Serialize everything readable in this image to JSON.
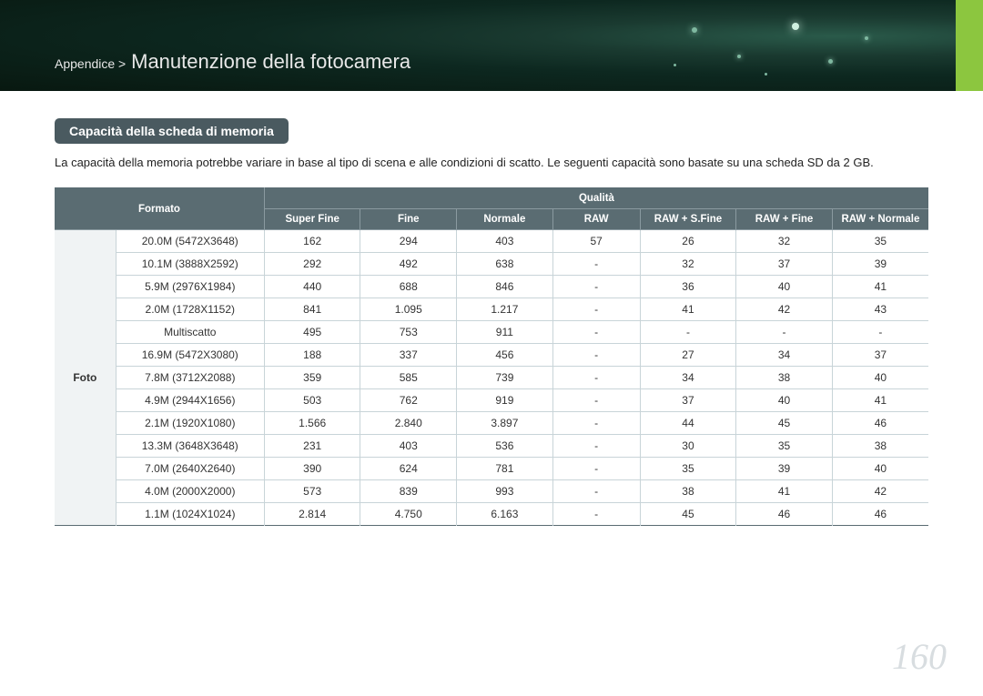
{
  "page": {
    "breadcrumb_prefix": "Appendice >",
    "breadcrumb_title": "Manutenzione della fotocamera",
    "page_number": "160"
  },
  "section": {
    "pill": "Capacità della scheda di memoria",
    "desc": "La capacità della memoria potrebbe variare in base al tipo di scena e alle condizioni di scatto. Le seguenti capacità sono basate su una scheda SD da 2 GB."
  },
  "table": {
    "header_group_left": "Formato",
    "header_group_right": "Qualità",
    "quality_columns": [
      "Super Fine",
      "Fine",
      "Normale",
      "RAW",
      "RAW + S.Fine",
      "RAW + Fine",
      "RAW + Normale"
    ],
    "row_category": "Foto",
    "rows": [
      {
        "format": "20.0M (5472X3648)",
        "vals": [
          "162",
          "294",
          "403",
          "57",
          "26",
          "32",
          "35"
        ]
      },
      {
        "format": "10.1M (3888X2592)",
        "vals": [
          "292",
          "492",
          "638",
          "-",
          "32",
          "37",
          "39"
        ]
      },
      {
        "format": "5.9M (2976X1984)",
        "vals": [
          "440",
          "688",
          "846",
          "-",
          "36",
          "40",
          "41"
        ]
      },
      {
        "format": "2.0M (1728X1152)",
        "vals": [
          "841",
          "1.095",
          "1.217",
          "-",
          "41",
          "42",
          "43"
        ]
      },
      {
        "format": "Multiscatto",
        "vals": [
          "495",
          "753",
          "911",
          "-",
          "-",
          "-",
          "-"
        ]
      },
      {
        "format": "16.9M (5472X3080)",
        "vals": [
          "188",
          "337",
          "456",
          "-",
          "27",
          "34",
          "37"
        ]
      },
      {
        "format": "7.8M (3712X2088)",
        "vals": [
          "359",
          "585",
          "739",
          "-",
          "34",
          "38",
          "40"
        ]
      },
      {
        "format": "4.9M (2944X1656)",
        "vals": [
          "503",
          "762",
          "919",
          "-",
          "37",
          "40",
          "41"
        ]
      },
      {
        "format": "2.1M (1920X1080)",
        "vals": [
          "1.566",
          "2.840",
          "3.897",
          "-",
          "44",
          "45",
          "46"
        ]
      },
      {
        "format": "13.3M (3648X3648)",
        "vals": [
          "231",
          "403",
          "536",
          "-",
          "30",
          "35",
          "38"
        ]
      },
      {
        "format": "7.0M (2640X2640)",
        "vals": [
          "390",
          "624",
          "781",
          "-",
          "35",
          "39",
          "40"
        ]
      },
      {
        "format": "4.0M (2000X2000)",
        "vals": [
          "573",
          "839",
          "993",
          "-",
          "38",
          "41",
          "42"
        ]
      },
      {
        "format": "1.1M (1024X1024)",
        "vals": [
          "2.814",
          "4.750",
          "6.163",
          "-",
          "45",
          "46",
          "46"
        ]
      }
    ]
  },
  "style": {
    "header_bg": "#5a6c72",
    "header_border": "#8a9aa0",
    "cell_border": "#c8d4d8",
    "rowhead_bg": "#f0f3f4",
    "accent_green": "#8cc63f",
    "page_num_color": "#d8dde0",
    "col_widths_pct": [
      7,
      17,
      11,
      11,
      11,
      10,
      11,
      11,
      11
    ]
  }
}
